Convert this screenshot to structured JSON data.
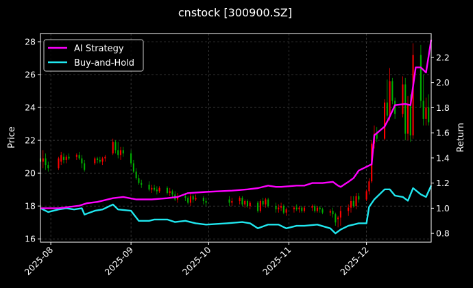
{
  "chart_data": {
    "type": "candlestick+line",
    "title": "cnstock [300900.SZ]",
    "ylabel_left": "Price",
    "ylabel_right": "Return",
    "x_tick_labels": [
      "2025-08",
      "2025-09",
      "2025-10",
      "2025-11",
      "2025-12"
    ],
    "x_tick_dates": [
      "2025-08-01",
      "2025-09-01",
      "2025-10-01",
      "2025-11-01",
      "2025-12-01"
    ],
    "xlim": [
      "2025-07-28",
      "2025-12-26"
    ],
    "ylim_left": [
      15.8,
      28.5
    ],
    "ylim_right": [
      0.73,
      2.39
    ],
    "yticks_left": [
      16,
      18,
      20,
      22,
      24,
      26,
      28
    ],
    "yticks_right": [
      "0.8",
      "1.0",
      "1.2",
      "1.4",
      "1.6",
      "1.8",
      "2.0",
      "2.2"
    ],
    "grid": true,
    "legend_position": "top-left",
    "colors": {
      "up": "#ff0000",
      "down": "#00b000",
      "ai_strategy": "#ff00ff",
      "buy_and_hold": "#20e8f0",
      "background": "#000000",
      "grid": "#555555"
    },
    "series": [
      {
        "name": "AI Strategy",
        "x": [
          "2025-07-28",
          "2025-08-04",
          "2025-08-08",
          "2025-08-12",
          "2025-08-15",
          "2025-08-19",
          "2025-08-25",
          "2025-08-29",
          "2025-09-03",
          "2025-09-09",
          "2025-09-15",
          "2025-09-19",
          "2025-09-23",
          "2025-09-30",
          "2025-10-10",
          "2025-10-16",
          "2025-10-20",
          "2025-10-24",
          "2025-10-27",
          "2025-10-29",
          "2025-11-04",
          "2025-11-07",
          "2025-11-10",
          "2025-11-14",
          "2025-11-18",
          "2025-11-20",
          "2025-11-21",
          "2025-11-24",
          "2025-11-26",
          "2025-11-28",
          "2025-12-01",
          "2025-12-03",
          "2025-12-04",
          "2025-12-08",
          "2025-12-10",
          "2025-12-12",
          "2025-12-16",
          "2025-12-18",
          "2025-12-20",
          "2025-12-22",
          "2025-12-24",
          "2025-12-26"
        ],
        "values": [
          1.0,
          1.0,
          1.01,
          1.02,
          1.04,
          1.05,
          1.08,
          1.09,
          1.07,
          1.07,
          1.08,
          1.09,
          1.12,
          1.13,
          1.14,
          1.15,
          1.16,
          1.18,
          1.17,
          1.17,
          1.18,
          1.18,
          1.2,
          1.2,
          1.21,
          1.18,
          1.17,
          1.21,
          1.24,
          1.3,
          1.33,
          1.35,
          1.58,
          1.65,
          1.73,
          1.82,
          1.83,
          1.82,
          2.12,
          2.12,
          2.08,
          2.34
        ]
      },
      {
        "name": "Buy-and-Hold",
        "x": [
          "2025-07-28",
          "2025-07-31",
          "2025-08-04",
          "2025-08-07",
          "2025-08-10",
          "2025-08-13",
          "2025-08-14",
          "2025-08-18",
          "2025-08-21",
          "2025-08-25",
          "2025-08-27",
          "2025-09-01",
          "2025-09-04",
          "2025-09-08",
          "2025-09-10",
          "2025-09-15",
          "2025-09-18",
          "2025-09-22",
          "2025-09-26",
          "2025-09-30",
          "2025-10-08",
          "2025-10-14",
          "2025-10-17",
          "2025-10-20",
          "2025-10-24",
          "2025-10-28",
          "2025-10-31",
          "2025-11-04",
          "2025-11-07",
          "2025-11-12",
          "2025-11-17",
          "2025-11-19",
          "2025-11-21",
          "2025-11-24",
          "2025-11-26",
          "2025-11-28",
          "2025-12-01",
          "2025-12-02",
          "2025-12-04",
          "2025-12-08",
          "2025-12-10",
          "2025-12-12",
          "2025-12-15",
          "2025-12-17",
          "2025-12-19",
          "2025-12-22",
          "2025-12-24",
          "2025-12-26"
        ],
        "values": [
          1.0,
          0.97,
          0.99,
          1.0,
          0.99,
          1.0,
          0.95,
          0.98,
          0.99,
          1.03,
          0.99,
          0.98,
          0.9,
          0.9,
          0.91,
          0.91,
          0.89,
          0.9,
          0.88,
          0.87,
          0.88,
          0.89,
          0.88,
          0.84,
          0.87,
          0.87,
          0.84,
          0.86,
          0.86,
          0.87,
          0.84,
          0.8,
          0.83,
          0.86,
          0.87,
          0.88,
          0.88,
          1.01,
          1.07,
          1.15,
          1.15,
          1.1,
          1.09,
          1.06,
          1.16,
          1.11,
          1.09,
          1.18
        ]
      },
      {
        "name": "Price (candlestick)",
        "ohlc": [
          [
            "2025-07-28",
            20.9,
            21.1,
            20.6,
            20.7
          ],
          [
            "2025-07-29",
            20.7,
            21.4,
            20.3,
            20.9
          ],
          [
            "2025-07-30",
            20.9,
            21.2,
            20.2,
            20.5
          ],
          [
            "2025-07-31",
            20.5,
            20.7,
            20.1,
            20.3
          ],
          [
            "2025-08-04",
            20.3,
            21.0,
            20.2,
            20.9
          ],
          [
            "2025-08-05",
            20.7,
            21.3,
            20.5,
            21.1
          ],
          [
            "2025-08-06",
            21.0,
            21.2,
            20.6,
            20.8
          ],
          [
            "2025-08-07",
            20.8,
            21.1,
            20.6,
            21.0
          ],
          [
            "2025-08-08",
            21.0,
            21.2,
            20.8,
            20.9
          ],
          [
            "2025-08-11",
            21.0,
            21.2,
            20.8,
            21.1
          ],
          [
            "2025-08-12",
            21.1,
            21.3,
            20.8,
            20.9
          ],
          [
            "2025-08-13",
            20.9,
            21.1,
            20.3,
            20.6
          ],
          [
            "2025-08-14",
            20.6,
            20.8,
            20.1,
            20.2
          ],
          [
            "2025-08-18",
            20.6,
            21.0,
            20.5,
            20.9
          ],
          [
            "2025-08-19",
            20.9,
            21.0,
            20.6,
            20.8
          ],
          [
            "2025-08-20",
            20.8,
            21.0,
            20.6,
            20.7
          ],
          [
            "2025-08-21",
            20.7,
            21.0,
            20.5,
            20.9
          ],
          [
            "2025-08-22",
            20.9,
            21.1,
            20.7,
            21.0
          ],
          [
            "2025-08-25",
            21.2,
            22.1,
            21.1,
            21.9
          ],
          [
            "2025-08-26",
            21.9,
            22.0,
            21.2,
            21.4
          ],
          [
            "2025-08-27",
            21.4,
            21.9,
            20.9,
            21.1
          ],
          [
            "2025-08-28",
            21.1,
            21.6,
            20.8,
            21.4
          ],
          [
            "2025-08-29",
            21.4,
            21.6,
            21.0,
            21.2
          ],
          [
            "2025-09-01",
            21.2,
            21.4,
            20.5,
            20.6
          ],
          [
            "2025-09-02",
            20.6,
            20.8,
            20.0,
            20.1
          ],
          [
            "2025-09-03",
            20.1,
            20.3,
            19.6,
            19.7
          ],
          [
            "2025-09-04",
            19.7,
            19.9,
            19.3,
            19.4
          ],
          [
            "2025-09-05",
            19.4,
            19.6,
            19.1,
            19.3
          ],
          [
            "2025-09-08",
            19.3,
            19.5,
            18.9,
            19.0
          ],
          [
            "2025-09-09",
            19.0,
            19.3,
            18.8,
            19.1
          ],
          [
            "2025-09-10",
            19.1,
            19.3,
            18.9,
            19.0
          ],
          [
            "2025-09-11",
            19.0,
            19.2,
            18.7,
            18.9
          ],
          [
            "2025-09-12",
            18.9,
            19.2,
            18.8,
            19.1
          ],
          [
            "2025-09-15",
            19.1,
            19.2,
            18.7,
            18.8
          ],
          [
            "2025-09-16",
            18.8,
            19.1,
            18.6,
            18.9
          ],
          [
            "2025-09-17",
            18.9,
            19.0,
            18.5,
            18.7
          ],
          [
            "2025-09-18",
            18.7,
            18.9,
            18.3,
            18.4
          ],
          [
            "2025-09-19",
            18.4,
            18.8,
            18.2,
            18.6
          ],
          [
            "2025-09-22",
            18.6,
            18.8,
            18.3,
            18.5
          ],
          [
            "2025-09-23",
            18.5,
            18.6,
            18.1,
            18.2
          ],
          [
            "2025-09-24",
            18.2,
            18.8,
            18.0,
            18.6
          ],
          [
            "2025-09-25",
            18.6,
            18.7,
            18.2,
            18.4
          ],
          [
            "2025-09-26",
            18.4,
            18.7,
            18.3,
            18.5
          ],
          [
            "2025-09-29",
            18.5,
            18.6,
            18.1,
            18.3
          ],
          [
            "2025-09-30",
            18.3,
            18.5,
            18.0,
            18.2
          ],
          [
            "2025-10-09",
            18.4,
            18.6,
            18.0,
            18.2
          ],
          [
            "2025-10-10",
            18.2,
            18.5,
            18.0,
            18.3
          ],
          [
            "2025-10-13",
            18.3,
            18.6,
            18.1,
            18.5
          ],
          [
            "2025-10-14",
            18.5,
            18.6,
            18.0,
            18.1
          ],
          [
            "2025-10-15",
            18.1,
            18.4,
            17.9,
            18.3
          ],
          [
            "2025-10-16",
            18.3,
            18.4,
            17.9,
            18.0
          ],
          [
            "2025-10-17",
            18.0,
            18.3,
            17.8,
            18.2
          ],
          [
            "2025-10-20",
            18.2,
            18.3,
            17.6,
            17.7
          ],
          [
            "2025-10-21",
            17.7,
            18.4,
            17.6,
            18.3
          ],
          [
            "2025-10-22",
            18.3,
            18.5,
            18.0,
            18.1
          ],
          [
            "2025-10-23",
            18.1,
            18.5,
            17.9,
            18.4
          ],
          [
            "2025-10-24",
            18.4,
            18.5,
            17.9,
            18.0
          ],
          [
            "2025-10-27",
            18.0,
            18.2,
            17.6,
            17.8
          ],
          [
            "2025-10-28",
            17.8,
            18.1,
            17.6,
            17.9
          ],
          [
            "2025-10-29",
            17.9,
            18.2,
            17.7,
            18.0
          ],
          [
            "2025-10-30",
            18.0,
            18.1,
            17.5,
            17.6
          ],
          [
            "2025-10-31",
            17.6,
            17.9,
            17.4,
            17.8
          ],
          [
            "2025-11-03",
            17.8,
            18.0,
            17.6,
            17.9
          ],
          [
            "2025-11-04",
            17.9,
            18.1,
            17.7,
            17.8
          ],
          [
            "2025-11-05",
            17.8,
            18.0,
            17.6,
            17.9
          ],
          [
            "2025-11-06",
            17.9,
            18.0,
            17.6,
            17.7
          ],
          [
            "2025-11-07",
            17.7,
            18.0,
            17.6,
            17.9
          ],
          [
            "2025-11-10",
            17.9,
            18.1,
            17.7,
            18.0
          ],
          [
            "2025-11-11",
            18.0,
            18.1,
            17.6,
            17.7
          ],
          [
            "2025-11-12",
            17.7,
            18.0,
            17.6,
            17.9
          ],
          [
            "2025-11-13",
            17.9,
            18.0,
            17.6,
            17.8
          ],
          [
            "2025-11-14",
            17.8,
            17.9,
            17.5,
            17.6
          ],
          [
            "2025-11-17",
            17.6,
            17.8,
            17.4,
            17.7
          ],
          [
            "2025-11-18",
            17.7,
            17.9,
            17.3,
            17.5
          ],
          [
            "2025-11-19",
            17.5,
            17.6,
            16.8,
            17.0
          ],
          [
            "2025-11-20",
            17.2,
            17.4,
            16.7,
            17.3
          ],
          [
            "2025-11-21",
            17.3,
            18.0,
            16.8,
            17.7
          ],
          [
            "2025-11-24",
            17.7,
            18.1,
            17.4,
            17.9
          ],
          [
            "2025-11-25",
            17.9,
            18.6,
            17.6,
            18.3
          ],
          [
            "2025-11-26",
            18.3,
            18.6,
            17.9,
            18.0
          ],
          [
            "2025-11-27",
            18.0,
            18.8,
            17.8,
            18.6
          ],
          [
            "2025-11-28",
            18.6,
            18.8,
            18.2,
            18.4
          ],
          [
            "2025-12-01",
            18.4,
            19.0,
            18.3,
            18.9
          ],
          [
            "2025-12-02",
            18.9,
            19.7,
            18.7,
            19.5
          ],
          [
            "2025-12-03",
            19.5,
            22.0,
            19.4,
            21.8
          ],
          [
            "2025-12-04",
            21.8,
            22.9,
            21.5,
            22.4
          ],
          [
            "2025-12-05",
            22.4,
            22.8,
            21.9,
            22.1
          ],
          [
            "2025-12-08",
            22.1,
            24.5,
            22.0,
            24.3
          ],
          [
            "2025-12-09",
            24.3,
            25.7,
            23.3,
            23.5
          ],
          [
            "2025-12-10",
            23.5,
            26.4,
            23.2,
            25.6
          ],
          [
            "2025-12-11",
            25.6,
            25.8,
            24.2,
            24.4
          ],
          [
            "2025-12-12",
            24.4,
            24.6,
            23.3,
            23.6
          ],
          [
            "2025-12-15",
            23.6,
            25.9,
            23.4,
            25.4
          ],
          [
            "2025-12-16",
            25.4,
            25.8,
            22.0,
            22.4
          ],
          [
            "2025-12-17",
            22.4,
            24.7,
            22.0,
            24.2
          ],
          [
            "2025-12-18",
            24.2,
            24.8,
            21.9,
            22.3
          ],
          [
            "2025-12-19",
            22.3,
            27.9,
            22.1,
            27.2
          ],
          [
            "2025-12-22",
            27.2,
            27.8,
            24.0,
            24.4
          ],
          [
            "2025-12-23",
            24.4,
            26.0,
            22.9,
            23.3
          ],
          [
            "2025-12-24",
            23.3,
            24.6,
            22.9,
            24.0
          ],
          [
            "2025-12-25",
            24.0,
            24.8,
            22.9,
            23.1
          ]
        ]
      }
    ]
  }
}
